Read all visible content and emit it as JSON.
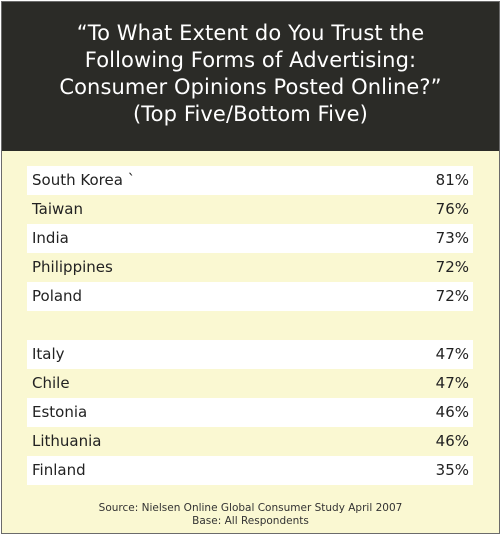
{
  "title_lines": [
    "“To What Extent do You Trust the",
    "Following Forms of Advertising:",
    "Consumer Opinions Posted Online?”",
    "(Top Five/Bottom Five)"
  ],
  "chart_data": {
    "type": "table",
    "title": "“To What Extent do You Trust the Following Forms of Advertising: Consumer Opinions Posted Online?” (Top Five/Bottom Five)",
    "top_five": [
      {
        "label": "South Korea `",
        "value": 81,
        "display": "81%"
      },
      {
        "label": "Taiwan",
        "value": 76,
        "display": "76%"
      },
      {
        "label": "India",
        "value": 73,
        "display": "73%"
      },
      {
        "label": "Philippines",
        "value": 72,
        "display": "72%"
      },
      {
        "label": "Poland",
        "value": 72,
        "display": "72%"
      }
    ],
    "bottom_five": [
      {
        "label": "Italy",
        "value": 47,
        "display": "47%"
      },
      {
        "label": "Chile",
        "value": 47,
        "display": "47%"
      },
      {
        "label": "Estonia",
        "value": 46,
        "display": "46%"
      },
      {
        "label": "Lithuania",
        "value": 46,
        "display": "46%"
      },
      {
        "label": "Finland",
        "value": 35,
        "display": "35%"
      }
    ]
  },
  "source": {
    "line1": "Source: Nielsen Online Global Consumer Study April 2007",
    "line2": "Base: All Respondents"
  },
  "colors": {
    "header_bg": "#2b2b27",
    "panel_bg": "#faf8d2",
    "stripe_bg": "#ffffff"
  }
}
